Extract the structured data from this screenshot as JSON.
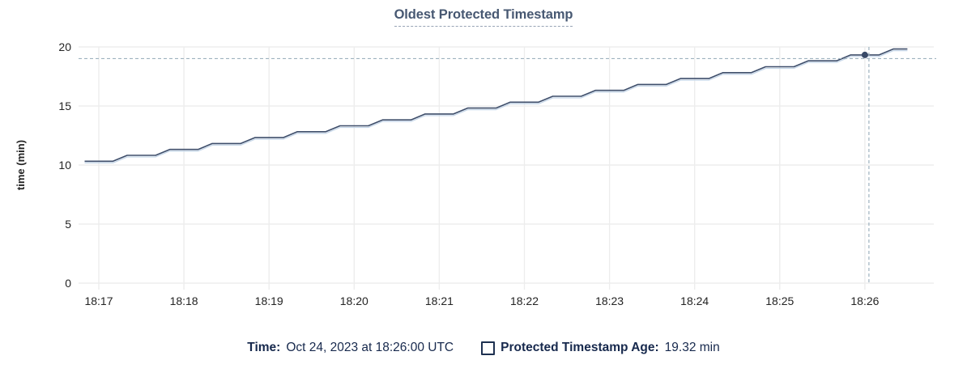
{
  "title": "Oldest Protected Timestamp",
  "colors": {
    "line": "#3e4e6b",
    "line_underlay": "#bfd2e6",
    "dot": "#394a68",
    "grid": "#ededed",
    "crosshair": "#9eb2bf",
    "title_text": "#475872",
    "legend_text": "#17294d",
    "tick_text": "#242424"
  },
  "chart_data": {
    "type": "line",
    "title": "Oldest Protected Timestamp",
    "xlabel": "",
    "ylabel": "time (min)",
    "ylim": [
      0,
      20
    ],
    "y_ticks": [
      0,
      5,
      10,
      15,
      20
    ],
    "x_tick_labels": [
      "18:17",
      "18:18",
      "18:19",
      "18:20",
      "18:21",
      "18:22",
      "18:23",
      "18:24",
      "18:25",
      "18:26"
    ],
    "grid": "on",
    "legend_position": "bottom",
    "series": [
      {
        "name": "Protected Timestamp Age",
        "unit": "min",
        "x": [
          "18:16:50",
          "18:17:00",
          "18:17:10",
          "18:17:20",
          "18:17:30",
          "18:17:40",
          "18:17:50",
          "18:18:00",
          "18:18:10",
          "18:18:20",
          "18:18:30",
          "18:18:40",
          "18:18:50",
          "18:19:00",
          "18:19:10",
          "18:19:20",
          "18:19:30",
          "18:19:40",
          "18:19:50",
          "18:20:00",
          "18:20:10",
          "18:20:20",
          "18:20:30",
          "18:20:40",
          "18:20:50",
          "18:21:00",
          "18:21:10",
          "18:21:20",
          "18:21:30",
          "18:21:40",
          "18:21:50",
          "18:22:00",
          "18:22:10",
          "18:22:20",
          "18:22:30",
          "18:22:40",
          "18:22:50",
          "18:23:00",
          "18:23:10",
          "18:23:20",
          "18:23:30",
          "18:23:40",
          "18:23:50",
          "18:24:00",
          "18:24:10",
          "18:24:20",
          "18:24:30",
          "18:24:40",
          "18:24:50",
          "18:25:00",
          "18:25:10",
          "18:25:20",
          "18:25:30",
          "18:25:40",
          "18:25:50",
          "18:26:00",
          "18:26:10",
          "18:26:20",
          "18:26:30"
        ],
        "values": [
          10.32,
          10.32,
          10.32,
          10.82,
          10.82,
          10.82,
          11.32,
          11.32,
          11.32,
          11.82,
          11.82,
          11.82,
          12.32,
          12.32,
          12.32,
          12.82,
          12.82,
          12.82,
          13.32,
          13.32,
          13.32,
          13.82,
          13.82,
          13.82,
          14.32,
          14.32,
          14.32,
          14.82,
          14.82,
          14.82,
          15.32,
          15.32,
          15.32,
          15.82,
          15.82,
          15.82,
          16.32,
          16.32,
          16.32,
          16.82,
          16.82,
          16.82,
          17.32,
          17.32,
          17.32,
          17.82,
          17.82,
          17.82,
          18.32,
          18.32,
          18.32,
          18.82,
          18.82,
          18.82,
          19.32,
          19.32,
          19.32,
          19.82,
          19.82
        ]
      }
    ],
    "hover_point": {
      "x": "18:26:00",
      "value": 19.32
    }
  },
  "legend": {
    "time_label": "Time:",
    "time_value": "Oct 24, 2023 at 18:26:00 UTC",
    "series_label": "Protected Timestamp Age:",
    "series_value": "19.32 min"
  }
}
